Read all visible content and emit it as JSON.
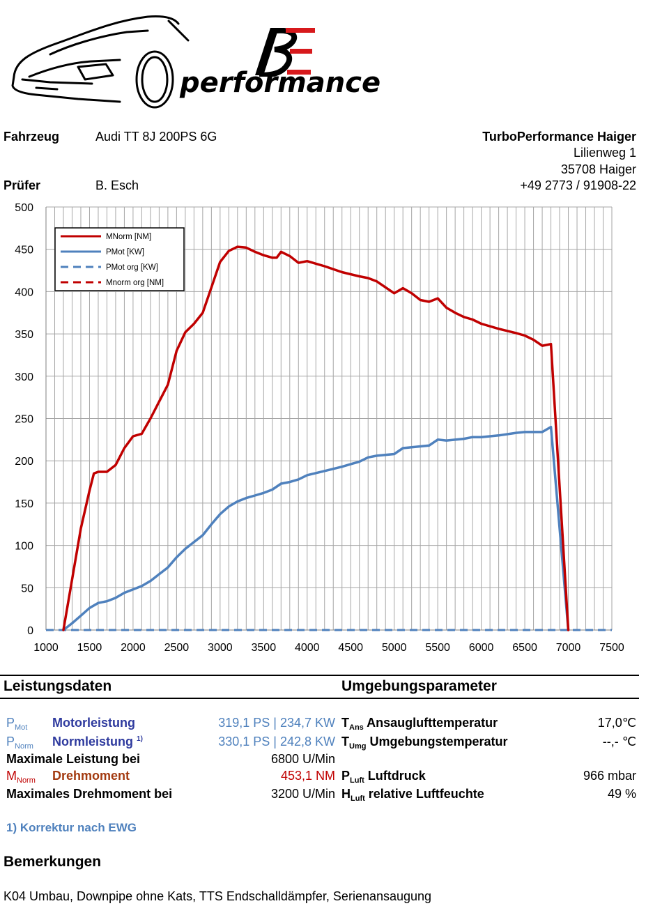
{
  "logo": {
    "mark": "BE",
    "text": "performance",
    "accent_color": "#d7191c"
  },
  "vehicle": {
    "label": "Fahrzeug",
    "value": "Audi TT 8J 200PS 6G"
  },
  "tester": {
    "label": "Prüfer",
    "value": "B. Esch"
  },
  "company": {
    "name": "TurboPerformance Haiger",
    "street": "Lilienweg 1",
    "city": "35708 Haiger",
    "phone": "+49 2773 / 91908-22"
  },
  "chart_data": {
    "type": "line",
    "title": "",
    "xlabel": "",
    "ylabel": "",
    "xlim": [
      1000,
      7500
    ],
    "ylim": [
      0,
      500
    ],
    "x_ticks": [
      1000,
      1500,
      2000,
      2500,
      3000,
      3500,
      4000,
      4500,
      5000,
      5500,
      6000,
      6500,
      7000,
      7500
    ],
    "y_ticks": [
      0,
      50,
      100,
      150,
      200,
      250,
      300,
      350,
      400,
      450,
      500
    ],
    "grid": true,
    "legend_position": "top-left",
    "series": [
      {
        "name": "MNorm [NM]",
        "color": "#c00000",
        "style": "solid",
        "points": [
          [
            1200,
            0
          ],
          [
            1300,
            60
          ],
          [
            1400,
            120
          ],
          [
            1500,
            165
          ],
          [
            1550,
            185
          ],
          [
            1600,
            187
          ],
          [
            1700,
            187
          ],
          [
            1800,
            195
          ],
          [
            1900,
            215
          ],
          [
            2000,
            229
          ],
          [
            2100,
            232
          ],
          [
            2200,
            250
          ],
          [
            2300,
            270
          ],
          [
            2400,
            290
          ],
          [
            2500,
            330
          ],
          [
            2600,
            352
          ],
          [
            2700,
            362
          ],
          [
            2800,
            375
          ],
          [
            2900,
            405
          ],
          [
            3000,
            435
          ],
          [
            3100,
            448
          ],
          [
            3200,
            453
          ],
          [
            3300,
            452
          ],
          [
            3400,
            447
          ],
          [
            3500,
            443
          ],
          [
            3600,
            440
          ],
          [
            3650,
            440
          ],
          [
            3700,
            447
          ],
          [
            3800,
            442
          ],
          [
            3900,
            434
          ],
          [
            4000,
            436
          ],
          [
            4200,
            430
          ],
          [
            4400,
            423
          ],
          [
            4600,
            418
          ],
          [
            4700,
            416
          ],
          [
            4800,
            412
          ],
          [
            4900,
            405
          ],
          [
            5000,
            398
          ],
          [
            5100,
            404
          ],
          [
            5200,
            398
          ],
          [
            5300,
            390
          ],
          [
            5400,
            388
          ],
          [
            5500,
            392
          ],
          [
            5600,
            381
          ],
          [
            5700,
            375
          ],
          [
            5800,
            370
          ],
          [
            5900,
            367
          ],
          [
            6000,
            362
          ],
          [
            6200,
            356
          ],
          [
            6400,
            351
          ],
          [
            6500,
            348
          ],
          [
            6600,
            343
          ],
          [
            6700,
            336
          ],
          [
            6800,
            338
          ],
          [
            7000,
            0
          ]
        ]
      },
      {
        "name": "PMot [KW]",
        "color": "#4f81bd",
        "style": "solid",
        "points": [
          [
            1200,
            0
          ],
          [
            1300,
            8
          ],
          [
            1400,
            17
          ],
          [
            1500,
            26
          ],
          [
            1600,
            32
          ],
          [
            1700,
            34
          ],
          [
            1800,
            38
          ],
          [
            1900,
            44
          ],
          [
            2000,
            48
          ],
          [
            2100,
            52
          ],
          [
            2200,
            58
          ],
          [
            2300,
            66
          ],
          [
            2400,
            74
          ],
          [
            2500,
            86
          ],
          [
            2600,
            96
          ],
          [
            2700,
            104
          ],
          [
            2800,
            112
          ],
          [
            2900,
            125
          ],
          [
            3000,
            137
          ],
          [
            3100,
            146
          ],
          [
            3200,
            152
          ],
          [
            3300,
            156
          ],
          [
            3400,
            159
          ],
          [
            3500,
            162
          ],
          [
            3600,
            166
          ],
          [
            3700,
            173
          ],
          [
            3800,
            175
          ],
          [
            3900,
            178
          ],
          [
            4000,
            183
          ],
          [
            4200,
            188
          ],
          [
            4400,
            193
          ],
          [
            4600,
            199
          ],
          [
            4700,
            204
          ],
          [
            4800,
            206
          ],
          [
            5000,
            208
          ],
          [
            5100,
            215
          ],
          [
            5200,
            216
          ],
          [
            5400,
            218
          ],
          [
            5500,
            225
          ],
          [
            5600,
            224
          ],
          [
            5800,
            226
          ],
          [
            5900,
            228
          ],
          [
            6000,
            228
          ],
          [
            6200,
            230
          ],
          [
            6400,
            233
          ],
          [
            6500,
            234
          ],
          [
            6600,
            234
          ],
          [
            6700,
            234
          ],
          [
            6800,
            240
          ],
          [
            7000,
            0
          ]
        ]
      },
      {
        "name": "PMot org [KW]",
        "color": "#4f81bd",
        "style": "dashed",
        "points": [
          [
            1000,
            0
          ],
          [
            7500,
            0
          ]
        ]
      },
      {
        "name": "Mnorm org [NM]",
        "color": "#c00000",
        "style": "dashed",
        "points": [
          [
            1000,
            0
          ],
          [
            7500,
            0
          ]
        ]
      }
    ]
  },
  "section_left": "Leistungsdaten",
  "section_right": "Umgebungsparameter",
  "perf": {
    "pmot_sym": "P",
    "pmot_sub": "Mot",
    "pmot_label": "Motorleistung",
    "pmot_value": "319,1 PS | 234,7 KW",
    "pnorm_sym": "P",
    "pnorm_sub": "Norm",
    "pnorm_label": "Normleistung",
    "pnorm_sup": "1)",
    "pnorm_value": "330,1 PS | 242,8 KW",
    "maxp_label": "Maximale Leistung bei",
    "maxp_value": "6800 U/Min",
    "mnorm_sym": "M",
    "mnorm_sub": "Norm",
    "mnorm_label": "Drehmoment",
    "mnorm_value": "453,1 NM",
    "maxm_label": "Maximales Drehmoment bei",
    "maxm_value": "3200 U/Min"
  },
  "env": {
    "tans_sym": "T",
    "tans_sub": "Ans",
    "tans_label": "Ansauglufttemperatur",
    "tans_value": "17,0℃",
    "tumg_sym": "T",
    "tumg_sub": "Umg",
    "tumg_label": "Umgebungstemperatur",
    "tumg_value": "--,- ℃",
    "pluft_sym": "P",
    "pluft_sub": "Luft",
    "pluft_label": "Luftdruck",
    "pluft_value": "966  mbar",
    "hluft_sym": "H",
    "hluft_sub": "Luft",
    "hluft_label": "relative Luftfeuchte",
    "hluft_value": "49 %"
  },
  "footnote": "1) Korrektur nach EWG",
  "remarks_title": "Bemerkungen",
  "remarks_text": "K04 Umbau, Downpipe ohne Kats, TTS Endschalldämpfer, Serienansaugung"
}
